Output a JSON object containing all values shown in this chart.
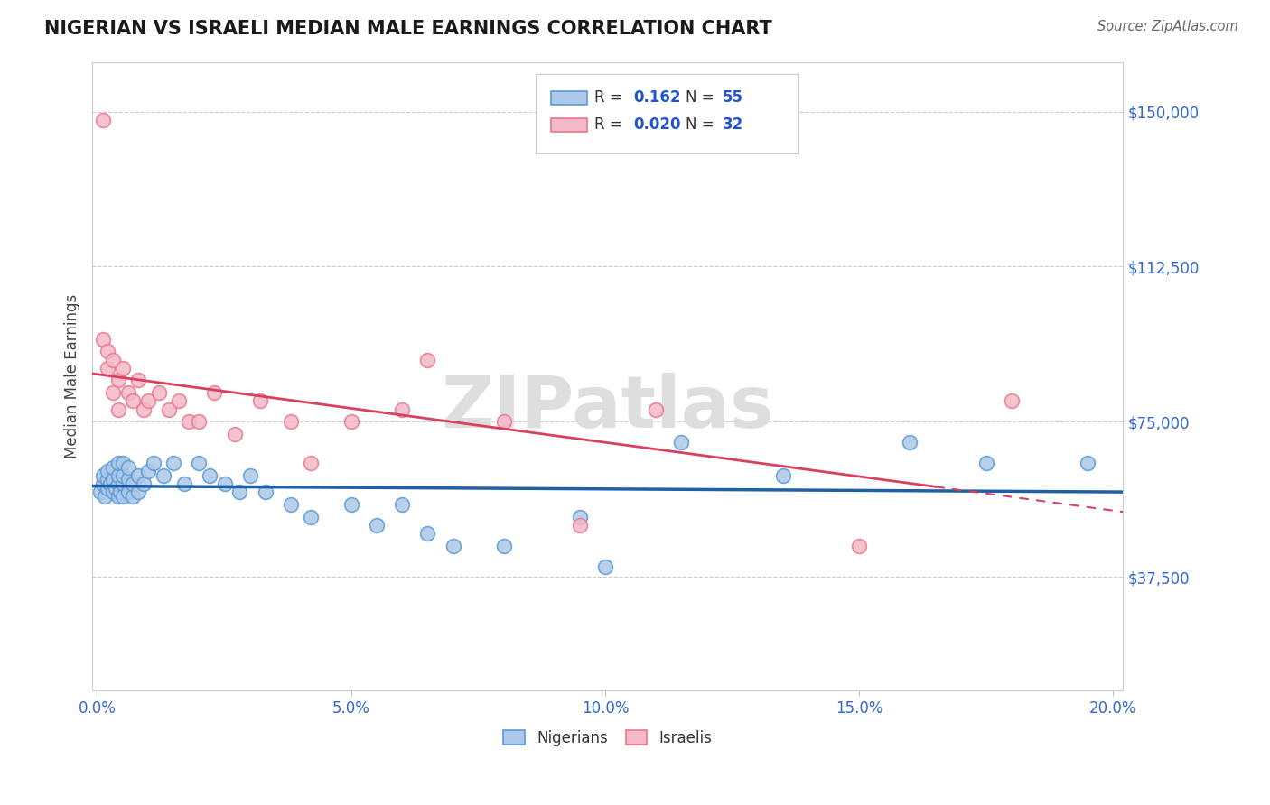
{
  "title": "NIGERIAN VS ISRAELI MEDIAN MALE EARNINGS CORRELATION CHART",
  "source": "Source: ZipAtlas.com",
  "ylabel": "Median Male Earnings",
  "ytick_values": [
    37500,
    75000,
    112500,
    150000
  ],
  "y_min": 10000,
  "y_max": 162000,
  "x_min": -0.001,
  "x_max": 0.202,
  "nigerian_color": "#adc8e8",
  "nigerian_edge": "#5b9bd5",
  "israeli_color": "#f4b8c8",
  "israeli_edge": "#e8788a",
  "trend_nigerian": "#1f5fa6",
  "trend_israeli": "#d94060",
  "nig_x": [
    0.0005,
    0.001,
    0.001,
    0.0015,
    0.002,
    0.002,
    0.002,
    0.0025,
    0.003,
    0.003,
    0.003,
    0.0035,
    0.004,
    0.004,
    0.004,
    0.004,
    0.0045,
    0.005,
    0.005,
    0.005,
    0.005,
    0.006,
    0.006,
    0.006,
    0.007,
    0.007,
    0.008,
    0.008,
    0.009,
    0.01,
    0.011,
    0.013,
    0.015,
    0.017,
    0.02,
    0.022,
    0.025,
    0.028,
    0.03,
    0.033,
    0.038,
    0.042,
    0.05,
    0.055,
    0.06,
    0.065,
    0.07,
    0.08,
    0.095,
    0.1,
    0.115,
    0.135,
    0.16,
    0.175,
    0.195
  ],
  "nig_y": [
    58000,
    60000,
    62000,
    57000,
    59000,
    61000,
    63000,
    60000,
    58000,
    61000,
    64000,
    59000,
    57000,
    60000,
    62000,
    65000,
    58000,
    60000,
    57000,
    62000,
    65000,
    58000,
    61000,
    64000,
    57000,
    60000,
    58000,
    62000,
    60000,
    63000,
    65000,
    62000,
    65000,
    60000,
    65000,
    62000,
    60000,
    58000,
    62000,
    58000,
    55000,
    52000,
    55000,
    50000,
    55000,
    48000,
    45000,
    45000,
    52000,
    40000,
    70000,
    62000,
    70000,
    65000,
    65000
  ],
  "isr_x": [
    0.001,
    0.001,
    0.002,
    0.002,
    0.003,
    0.003,
    0.004,
    0.004,
    0.005,
    0.006,
    0.007,
    0.008,
    0.009,
    0.01,
    0.012,
    0.014,
    0.016,
    0.018,
    0.02,
    0.023,
    0.027,
    0.032,
    0.038,
    0.042,
    0.05,
    0.06,
    0.065,
    0.08,
    0.095,
    0.11,
    0.15,
    0.18
  ],
  "isr_y": [
    148000,
    95000,
    88000,
    92000,
    90000,
    82000,
    85000,
    78000,
    88000,
    82000,
    80000,
    85000,
    78000,
    80000,
    82000,
    78000,
    80000,
    75000,
    75000,
    82000,
    72000,
    80000,
    75000,
    65000,
    75000,
    78000,
    90000,
    75000,
    50000,
    78000,
    45000,
    80000
  ]
}
